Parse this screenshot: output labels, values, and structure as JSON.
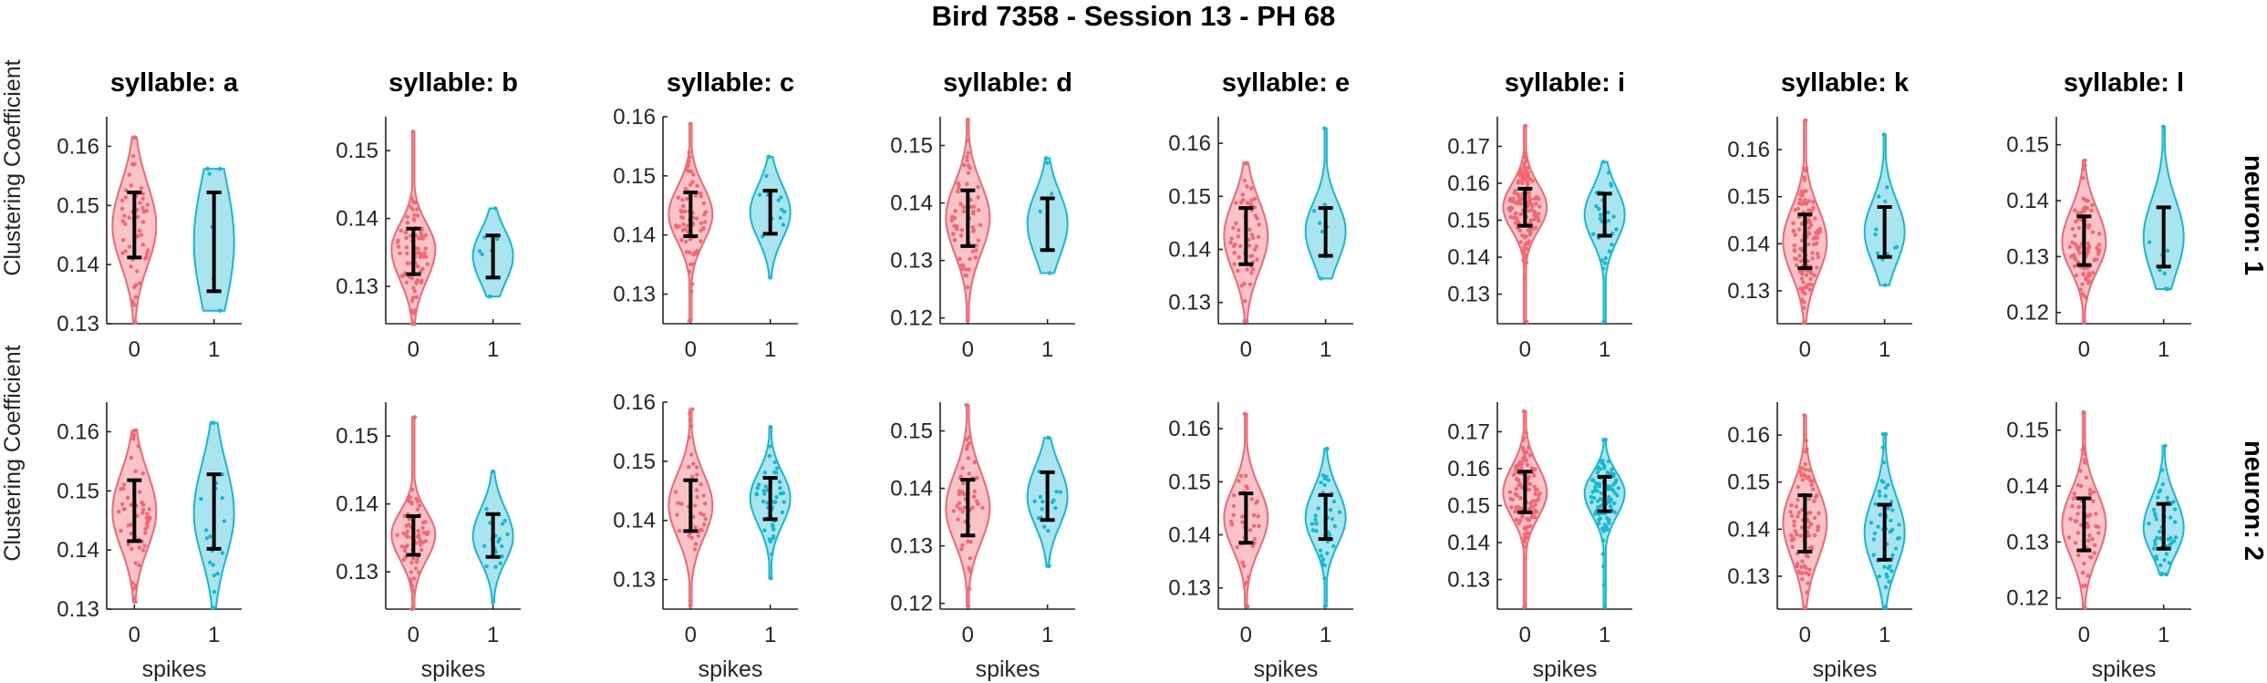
{
  "figure": {
    "title": "Bird 7358 - Session 13 - PH 68",
    "xlabel": "spikes",
    "ylabel": "Clustering Coefficient",
    "row_labels": [
      "neuron: 1",
      "neuron: 2"
    ],
    "colors": {
      "spikes_0": "#F46670",
      "spikes_0_fill": "#F9B8BD",
      "spikes_1": "#14B9D2",
      "spikes_1_fill": "#9BE1EC",
      "errorbar": "#000000"
    }
  },
  "chart_data": [
    {
      "type": "violin",
      "syllable": "a",
      "neuron": 1,
      "title": "syllable: a",
      "categories": [
        "0",
        "1"
      ],
      "ylim": [
        0.13,
        0.165
      ],
      "yticks": [
        0.13,
        0.14,
        0.15,
        0.16
      ],
      "series": [
        {
          "category": "0",
          "center": 0.1465,
          "err_low": 0.1412,
          "err_high": 0.1522,
          "min": 0.1302,
          "max": 0.1615,
          "n": 60
        },
        {
          "category": "1",
          "center": 0.1438,
          "err_low": 0.1355,
          "err_high": 0.1522,
          "min": 0.1322,
          "max": 0.1562,
          "n": 6
        }
      ]
    },
    {
      "type": "violin",
      "syllable": "b",
      "neuron": 1,
      "title": "syllable: b",
      "categories": [
        "0",
        "1"
      ],
      "ylim": [
        0.1245,
        0.155
      ],
      "yticks": [
        0.13,
        0.14,
        0.15
      ],
      "series": [
        {
          "category": "0",
          "center": 0.1355,
          "err_low": 0.1318,
          "err_high": 0.1385,
          "min": 0.1245,
          "max": 0.1528,
          "n": 80
        },
        {
          "category": "1",
          "center": 0.1345,
          "err_low": 0.1313,
          "err_high": 0.1375,
          "min": 0.1285,
          "max": 0.1415,
          "n": 8
        }
      ]
    },
    {
      "type": "violin",
      "syllable": "c",
      "neuron": 1,
      "title": "syllable: c",
      "categories": [
        "0",
        "1"
      ],
      "ylim": [
        0.125,
        0.16
      ],
      "yticks": [
        0.13,
        0.14,
        0.15,
        0.16
      ],
      "series": [
        {
          "category": "0",
          "center": 0.1435,
          "err_low": 0.1398,
          "err_high": 0.1472,
          "min": 0.1255,
          "max": 0.1588,
          "n": 70
        },
        {
          "category": "1",
          "center": 0.1438,
          "err_low": 0.1402,
          "err_high": 0.1475,
          "min": 0.1328,
          "max": 0.1532,
          "n": 15
        }
      ]
    },
    {
      "type": "violin",
      "syllable": "d",
      "neuron": 1,
      "title": "syllable: d",
      "categories": [
        "0",
        "1"
      ],
      "ylim": [
        0.119,
        0.155
      ],
      "yticks": [
        0.12,
        0.13,
        0.14,
        0.15
      ],
      "series": [
        {
          "category": "0",
          "center": 0.1375,
          "err_low": 0.1325,
          "err_high": 0.1422,
          "min": 0.1195,
          "max": 0.1545,
          "n": 60
        },
        {
          "category": "1",
          "center": 0.1365,
          "err_low": 0.1318,
          "err_high": 0.1408,
          "min": 0.1278,
          "max": 0.1478,
          "n": 6
        }
      ]
    },
    {
      "type": "violin",
      "syllable": "e",
      "neuron": 1,
      "title": "syllable: e",
      "categories": [
        "0",
        "1"
      ],
      "ylim": [
        0.126,
        0.165
      ],
      "yticks": [
        0.13,
        0.14,
        0.15,
        0.16
      ],
      "series": [
        {
          "category": "0",
          "center": 0.1425,
          "err_low": 0.1372,
          "err_high": 0.1478,
          "min": 0.1265,
          "max": 0.1562,
          "n": 60
        },
        {
          "category": "1",
          "center": 0.1435,
          "err_low": 0.1388,
          "err_high": 0.1478,
          "min": 0.1345,
          "max": 0.1628,
          "n": 8
        }
      ]
    },
    {
      "type": "violin",
      "syllable": "i",
      "neuron": 1,
      "title": "syllable: i",
      "categories": [
        "0",
        "1"
      ],
      "ylim": [
        0.122,
        0.178
      ],
      "yticks": [
        0.13,
        0.14,
        0.15,
        0.16,
        0.17
      ],
      "series": [
        {
          "category": "0",
          "center": 0.1535,
          "err_low": 0.1485,
          "err_high": 0.1585,
          "min": 0.1225,
          "max": 0.1755,
          "n": 150
        },
        {
          "category": "1",
          "center": 0.1515,
          "err_low": 0.1458,
          "err_high": 0.1572,
          "min": 0.1225,
          "max": 0.1658,
          "n": 30
        }
      ]
    },
    {
      "type": "violin",
      "syllable": "k",
      "neuron": 1,
      "title": "syllable: k",
      "categories": [
        "0",
        "1"
      ],
      "ylim": [
        0.123,
        0.167
      ],
      "yticks": [
        0.13,
        0.14,
        0.15,
        0.16
      ],
      "series": [
        {
          "category": "0",
          "center": 0.1405,
          "err_low": 0.1348,
          "err_high": 0.1462,
          "min": 0.1232,
          "max": 0.1662,
          "n": 120
        },
        {
          "category": "1",
          "center": 0.1425,
          "err_low": 0.1372,
          "err_high": 0.1478,
          "min": 0.1312,
          "max": 0.1632,
          "n": 12
        }
      ]
    },
    {
      "type": "violin",
      "syllable": "l",
      "neuron": 1,
      "title": "syllable: l",
      "categories": [
        "0",
        "1"
      ],
      "ylim": [
        0.118,
        0.155
      ],
      "yticks": [
        0.12,
        0.13,
        0.14,
        0.15
      ],
      "series": [
        {
          "category": "0",
          "center": 0.1325,
          "err_low": 0.1285,
          "err_high": 0.1372,
          "min": 0.1182,
          "max": 0.1472,
          "n": 90
        },
        {
          "category": "1",
          "center": 0.1335,
          "err_low": 0.1282,
          "err_high": 0.1388,
          "min": 0.1242,
          "max": 0.1532,
          "n": 10
        }
      ]
    },
    {
      "type": "violin",
      "syllable": "a",
      "neuron": 2,
      "title": "",
      "categories": [
        "0",
        "1"
      ],
      "ylim": [
        0.13,
        0.165
      ],
      "yticks": [
        0.13,
        0.14,
        0.15,
        0.16
      ],
      "series": [
        {
          "category": "0",
          "center": 0.1465,
          "err_low": 0.1415,
          "err_high": 0.1518,
          "min": 0.1312,
          "max": 0.1602,
          "n": 60
        },
        {
          "category": "1",
          "center": 0.1462,
          "err_low": 0.1402,
          "err_high": 0.1528,
          "min": 0.1302,
          "max": 0.1615,
          "n": 20
        }
      ]
    },
    {
      "type": "violin",
      "syllable": "b",
      "neuron": 2,
      "title": "",
      "categories": [
        "0",
        "1"
      ],
      "ylim": [
        0.1245,
        0.155
      ],
      "yticks": [
        0.13,
        0.14,
        0.15
      ],
      "series": [
        {
          "category": "0",
          "center": 0.1355,
          "err_low": 0.1325,
          "err_high": 0.1382,
          "min": 0.1245,
          "max": 0.1528,
          "n": 70
        },
        {
          "category": "1",
          "center": 0.1352,
          "err_low": 0.1322,
          "err_high": 0.1385,
          "min": 0.1255,
          "max": 0.1448,
          "n": 20
        }
      ]
    },
    {
      "type": "violin",
      "syllable": "c",
      "neuron": 2,
      "title": "",
      "categories": [
        "0",
        "1"
      ],
      "ylim": [
        0.125,
        0.16
      ],
      "yticks": [
        0.13,
        0.14,
        0.15,
        0.16
      ],
      "series": [
        {
          "category": "0",
          "center": 0.1425,
          "err_low": 0.1382,
          "err_high": 0.1468,
          "min": 0.1255,
          "max": 0.1588,
          "n": 40
        },
        {
          "category": "1",
          "center": 0.1438,
          "err_low": 0.1402,
          "err_high": 0.1472,
          "min": 0.1302,
          "max": 0.1558,
          "n": 50
        }
      ]
    },
    {
      "type": "violin",
      "syllable": "d",
      "neuron": 2,
      "title": "",
      "categories": [
        "0",
        "1"
      ],
      "ylim": [
        0.119,
        0.155
      ],
      "yticks": [
        0.12,
        0.13,
        0.14,
        0.15
      ],
      "series": [
        {
          "category": "0",
          "center": 0.1365,
          "err_low": 0.1318,
          "err_high": 0.1415,
          "min": 0.1195,
          "max": 0.1545,
          "n": 50
        },
        {
          "category": "1",
          "center": 0.1385,
          "err_low": 0.1345,
          "err_high": 0.1428,
          "min": 0.1265,
          "max": 0.1488,
          "n": 20
        }
      ]
    },
    {
      "type": "violin",
      "syllable": "e",
      "neuron": 2,
      "title": "",
      "categories": [
        "0",
        "1"
      ],
      "ylim": [
        0.126,
        0.165
      ],
      "yticks": [
        0.13,
        0.14,
        0.15,
        0.16
      ],
      "series": [
        {
          "category": "0",
          "center": 0.1432,
          "err_low": 0.1385,
          "err_high": 0.1478,
          "min": 0.1265,
          "max": 0.1628,
          "n": 40
        },
        {
          "category": "1",
          "center": 0.1432,
          "err_low": 0.1392,
          "err_high": 0.1475,
          "min": 0.1265,
          "max": 0.1562,
          "n": 40
        }
      ]
    },
    {
      "type": "violin",
      "syllable": "i",
      "neuron": 2,
      "title": "",
      "categories": [
        "0",
        "1"
      ],
      "ylim": [
        0.122,
        0.178
      ],
      "yticks": [
        0.13,
        0.14,
        0.15,
        0.16,
        0.17
      ],
      "series": [
        {
          "category": "0",
          "center": 0.1535,
          "err_low": 0.1482,
          "err_high": 0.1592,
          "min": 0.1225,
          "max": 0.1755,
          "n": 120
        },
        {
          "category": "1",
          "center": 0.1535,
          "err_low": 0.1485,
          "err_high": 0.1578,
          "min": 0.1225,
          "max": 0.1678,
          "n": 100
        }
      ]
    },
    {
      "type": "violin",
      "syllable": "k",
      "neuron": 2,
      "title": "",
      "categories": [
        "0",
        "1"
      ],
      "ylim": [
        0.123,
        0.167
      ],
      "yticks": [
        0.13,
        0.14,
        0.15,
        0.16
      ],
      "series": [
        {
          "category": "0",
          "center": 0.1415,
          "err_low": 0.1352,
          "err_high": 0.1472,
          "min": 0.1232,
          "max": 0.1642,
          "n": 90
        },
        {
          "category": "1",
          "center": 0.1392,
          "err_low": 0.1335,
          "err_high": 0.1452,
          "min": 0.1232,
          "max": 0.1602,
          "n": 50
        }
      ]
    },
    {
      "type": "violin",
      "syllable": "l",
      "neuron": 2,
      "title": "",
      "categories": [
        "0",
        "1"
      ],
      "ylim": [
        0.118,
        0.155
      ],
      "yticks": [
        0.12,
        0.13,
        0.14,
        0.15
      ],
      "series": [
        {
          "category": "0",
          "center": 0.1332,
          "err_low": 0.1285,
          "err_high": 0.1378,
          "min": 0.1182,
          "max": 0.1532,
          "n": 60
        },
        {
          "category": "1",
          "center": 0.1325,
          "err_low": 0.1288,
          "err_high": 0.1368,
          "min": 0.1242,
          "max": 0.1472,
          "n": 50
        }
      ]
    }
  ]
}
